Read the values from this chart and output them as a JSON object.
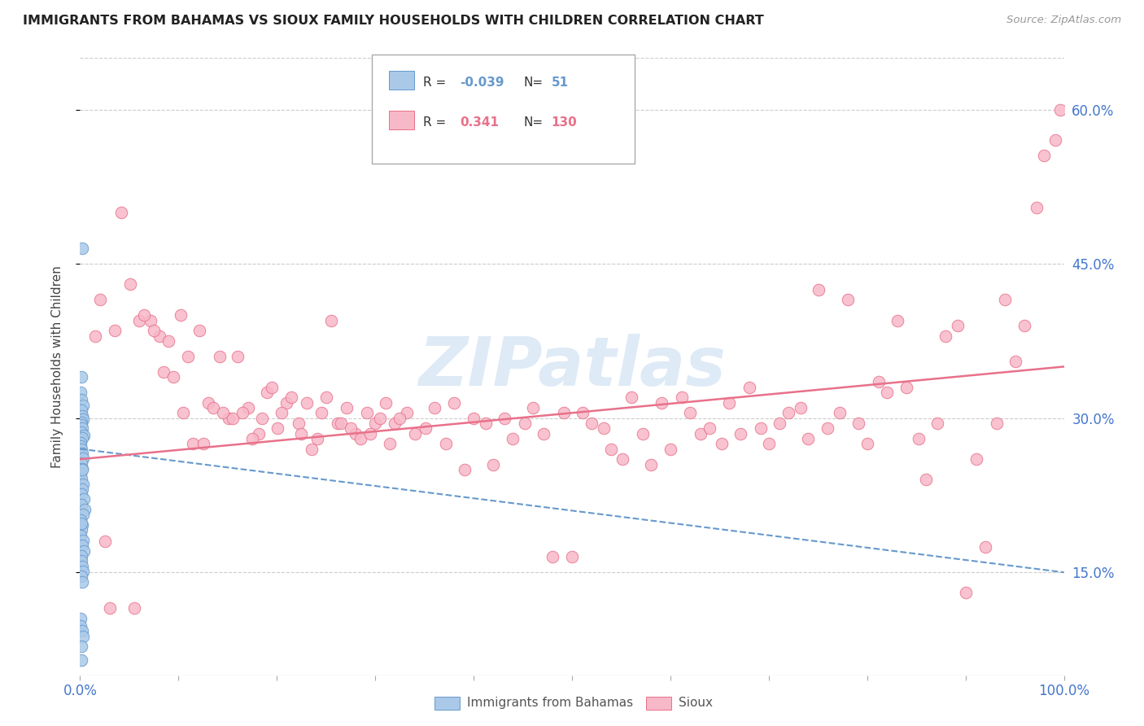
{
  "title": "IMMIGRANTS FROM BAHAMAS VS SIOUX FAMILY HOUSEHOLDS WITH CHILDREN CORRELATION CHART",
  "source": "Source: ZipAtlas.com",
  "ylabel": "Family Households with Children",
  "blue_R": -0.039,
  "blue_N": 51,
  "pink_R": 0.341,
  "pink_N": 130,
  "xmin": 0.0,
  "xmax": 100.0,
  "ymin": 5.0,
  "ymax": 65.0,
  "yticks": [
    15.0,
    30.0,
    45.0,
    60.0
  ],
  "xticks": [
    0.0,
    10.0,
    20.0,
    30.0,
    40.0,
    50.0,
    60.0,
    70.0,
    80.0,
    90.0,
    100.0
  ],
  "blue_color": "#aac9e8",
  "pink_color": "#f7b8c8",
  "blue_edge_color": "#6699cc",
  "pink_edge_color": "#e8718a",
  "blue_line_color": "#6699cc",
  "pink_line_color": "#e8718a",
  "grid_color": "#cccccc",
  "background_color": "#ffffff",
  "watermark": "ZIPatlas",
  "watermark_color": "#c8ddf0",
  "tick_label_color": "#4477cc",
  "title_color": "#222222",
  "source_color": "#999999",
  "ylabel_color": "#444444",
  "legend_label_color": "#333333",
  "blue_scatter_x": [
    0.18,
    0.12,
    0.06,
    0.15,
    0.28,
    0.1,
    0.2,
    0.31,
    0.14,
    0.09,
    0.22,
    0.11,
    0.38,
    0.19,
    0.05,
    0.08,
    0.16,
    0.21,
    0.29,
    0.1,
    0.18,
    0.06,
    0.12,
    0.32,
    0.22,
    0.09,
    0.41,
    0.17,
    0.45,
    0.26,
    0.08,
    0.23,
    0.11,
    0.04,
    0.31,
    0.19,
    0.42,
    0.14,
    0.09,
    0.21,
    0.28,
    0.11,
    0.18,
    0.05,
    0.08,
    0.22,
    0.29,
    0.12,
    0.13,
    0.25,
    0.16
  ],
  "blue_scatter_y": [
    46.5,
    34.0,
    32.5,
    31.8,
    31.2,
    30.8,
    30.2,
    29.9,
    29.6,
    29.3,
    29.0,
    28.6,
    28.3,
    28.1,
    27.6,
    27.3,
    27.0,
    26.6,
    26.1,
    25.6,
    25.1,
    24.6,
    24.1,
    23.6,
    23.1,
    22.6,
    22.1,
    21.6,
    21.1,
    20.6,
    20.1,
    19.6,
    19.1,
    18.6,
    18.1,
    17.6,
    17.1,
    16.6,
    16.1,
    15.6,
    15.1,
    14.6,
    14.1,
    10.5,
    9.8,
    9.3,
    8.8,
    7.8,
    19.8,
    25.0,
    6.5
  ],
  "pink_scatter_x": [
    1.5,
    2.0,
    3.5,
    4.2,
    5.1,
    6.0,
    7.2,
    8.1,
    9.0,
    10.2,
    11.0,
    12.1,
    13.0,
    14.2,
    15.1,
    16.0,
    17.1,
    18.2,
    19.0,
    20.1,
    21.0,
    22.2,
    23.0,
    24.1,
    25.0,
    26.2,
    27.1,
    28.0,
    29.2,
    30.0,
    31.1,
    32.0,
    33.2,
    34.0,
    35.1,
    36.0,
    37.2,
    38.0,
    39.1,
    40.0,
    41.2,
    42.0,
    43.1,
    44.0,
    45.2,
    46.0,
    47.1,
    48.0,
    49.2,
    50.0,
    51.1,
    52.0,
    53.2,
    54.0,
    55.1,
    56.0,
    57.2,
    58.0,
    59.1,
    60.0,
    61.2,
    62.0,
    63.1,
    64.0,
    65.2,
    66.0,
    67.1,
    68.0,
    69.2,
    70.0,
    71.1,
    72.0,
    73.2,
    74.0,
    75.1,
    76.0,
    77.2,
    78.0,
    79.1,
    80.0,
    81.2,
    82.0,
    83.1,
    84.0,
    85.2,
    86.0,
    87.1,
    88.0,
    89.2,
    90.0,
    91.1,
    92.0,
    93.2,
    94.0,
    95.1,
    96.0,
    97.2,
    98.0,
    99.1,
    99.6,
    2.5,
    3.0,
    5.5,
    6.5,
    7.5,
    8.5,
    9.5,
    10.5,
    11.5,
    12.5,
    13.5,
    14.5,
    15.5,
    16.5,
    17.5,
    18.5,
    19.5,
    20.5,
    21.5,
    22.5,
    23.5,
    24.5,
    25.5,
    26.5,
    27.5,
    28.5,
    29.5,
    30.5,
    31.5,
    32.5
  ],
  "pink_scatter_y": [
    38.0,
    41.5,
    38.5,
    50.0,
    43.0,
    39.5,
    39.5,
    38.0,
    37.5,
    40.0,
    36.0,
    38.5,
    31.5,
    36.0,
    30.0,
    36.0,
    31.0,
    28.5,
    32.5,
    29.0,
    31.5,
    29.5,
    31.5,
    28.0,
    32.0,
    29.5,
    31.0,
    28.5,
    30.5,
    29.5,
    31.5,
    29.5,
    30.5,
    28.5,
    29.0,
    31.0,
    27.5,
    31.5,
    25.0,
    30.0,
    29.5,
    25.5,
    30.0,
    28.0,
    29.5,
    31.0,
    28.5,
    16.5,
    30.5,
    16.5,
    30.5,
    29.5,
    29.0,
    27.0,
    26.0,
    32.0,
    28.5,
    25.5,
    31.5,
    27.0,
    32.0,
    30.5,
    28.5,
    29.0,
    27.5,
    31.5,
    28.5,
    33.0,
    29.0,
    27.5,
    29.5,
    30.5,
    31.0,
    28.0,
    42.5,
    29.0,
    30.5,
    41.5,
    29.5,
    27.5,
    33.5,
    32.5,
    39.5,
    33.0,
    28.0,
    24.0,
    29.5,
    38.0,
    39.0,
    13.0,
    26.0,
    17.5,
    29.5,
    41.5,
    35.5,
    39.0,
    50.5,
    55.5,
    57.0,
    60.0,
    18.0,
    11.5,
    11.5,
    40.0,
    38.5,
    34.5,
    34.0,
    30.5,
    27.5,
    27.5,
    31.0,
    30.5,
    30.0,
    30.5,
    28.0,
    30.0,
    33.0,
    30.5,
    32.0,
    28.5,
    27.0,
    30.5,
    39.5,
    29.5,
    29.0,
    28.0,
    28.5,
    30.0,
    27.5,
    30.0
  ]
}
